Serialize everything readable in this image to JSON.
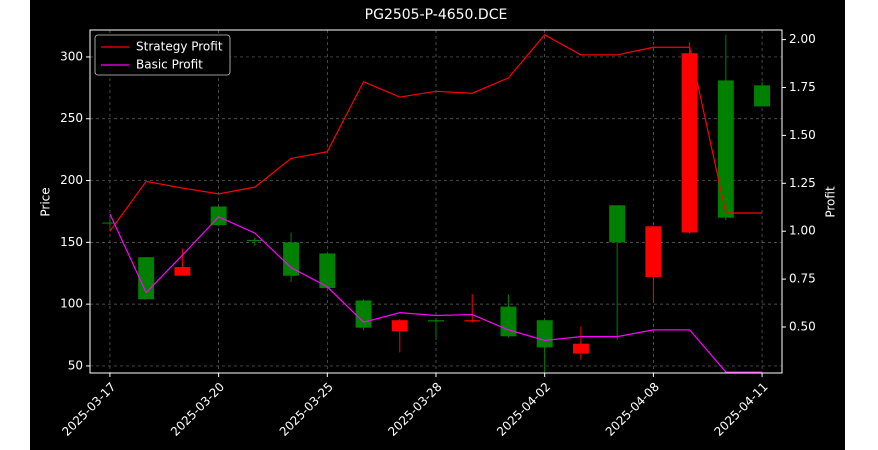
{
  "chart_data": {
    "type": "candlestick",
    "title": "PG2505-P-4650.DCE",
    "ylabel": "Price",
    "y2label": "Profit",
    "categories": [
      "2025-03-17",
      null,
      null,
      "2025-03-20",
      null,
      null,
      "2025-03-25",
      null,
      null,
      "2025-03-28",
      null,
      null,
      "2025-04-02",
      null,
      null,
      "2025-04-08",
      null,
      null,
      "2025-04-11"
    ],
    "open": [
      166,
      104,
      130,
      164,
      151,
      123,
      113,
      81,
      87,
      86,
      87,
      74,
      65,
      68,
      150,
      163,
      303,
      170,
      260
    ],
    "high": [
      170,
      138,
      145,
      179,
      154,
      158,
      141,
      104,
      88,
      87,
      108,
      108,
      87,
      82,
      180,
      163,
      312,
      318,
      280
    ],
    "low": [
      159,
      104,
      123,
      163,
      147,
      118,
      112,
      79,
      61,
      71,
      85,
      73,
      45,
      55,
      71,
      102,
      157,
      168,
      260
    ],
    "close": [
      166,
      138,
      123,
      179,
      152,
      150,
      141,
      103,
      78,
      87,
      86,
      98,
      87,
      60,
      180,
      122,
      158,
      281,
      277
    ],
    "up_color": "#008000",
    "down_color": "#ff0000",
    "series": [
      {
        "name": "Strategy Profit",
        "color": "#ff0000",
        "axis": "y2",
        "values": [
          1.0,
          1.26,
          1.225,
          1.195,
          1.23,
          1.38,
          1.415,
          1.78,
          1.7,
          1.73,
          1.72,
          1.8,
          2.025,
          1.92,
          1.92,
          1.96,
          1.96,
          1.095,
          1.095
        ]
      },
      {
        "name": "Basic Profit",
        "color": "#ff00ff",
        "axis": "y2",
        "values": [
          1.09,
          0.68,
          0.875,
          1.075,
          0.99,
          0.81,
          0.71,
          0.525,
          0.575,
          0.56,
          0.565,
          0.485,
          0.43,
          0.45,
          0.45,
          0.485,
          0.485,
          0.265,
          0.265
        ]
      }
    ],
    "ylim": [
      44.3,
      321.8
    ],
    "yticks": [
      50,
      100,
      150,
      200,
      250,
      300
    ],
    "y2lim": [
      0.26,
      2.05
    ],
    "y2ticks": [
      {
        "value": 0.5,
        "label": "0.50"
      },
      {
        "value": 0.75,
        "label": "0.75"
      },
      {
        "value": 1.0,
        "label": "1.00"
      },
      {
        "value": 1.25,
        "label": "1.25"
      },
      {
        "value": 1.5,
        "label": "1.50"
      },
      {
        "value": 1.75,
        "label": "1.75"
      },
      {
        "value": 2.0,
        "label": "2.00"
      }
    ],
    "grid": true,
    "legend": "upper-left"
  }
}
